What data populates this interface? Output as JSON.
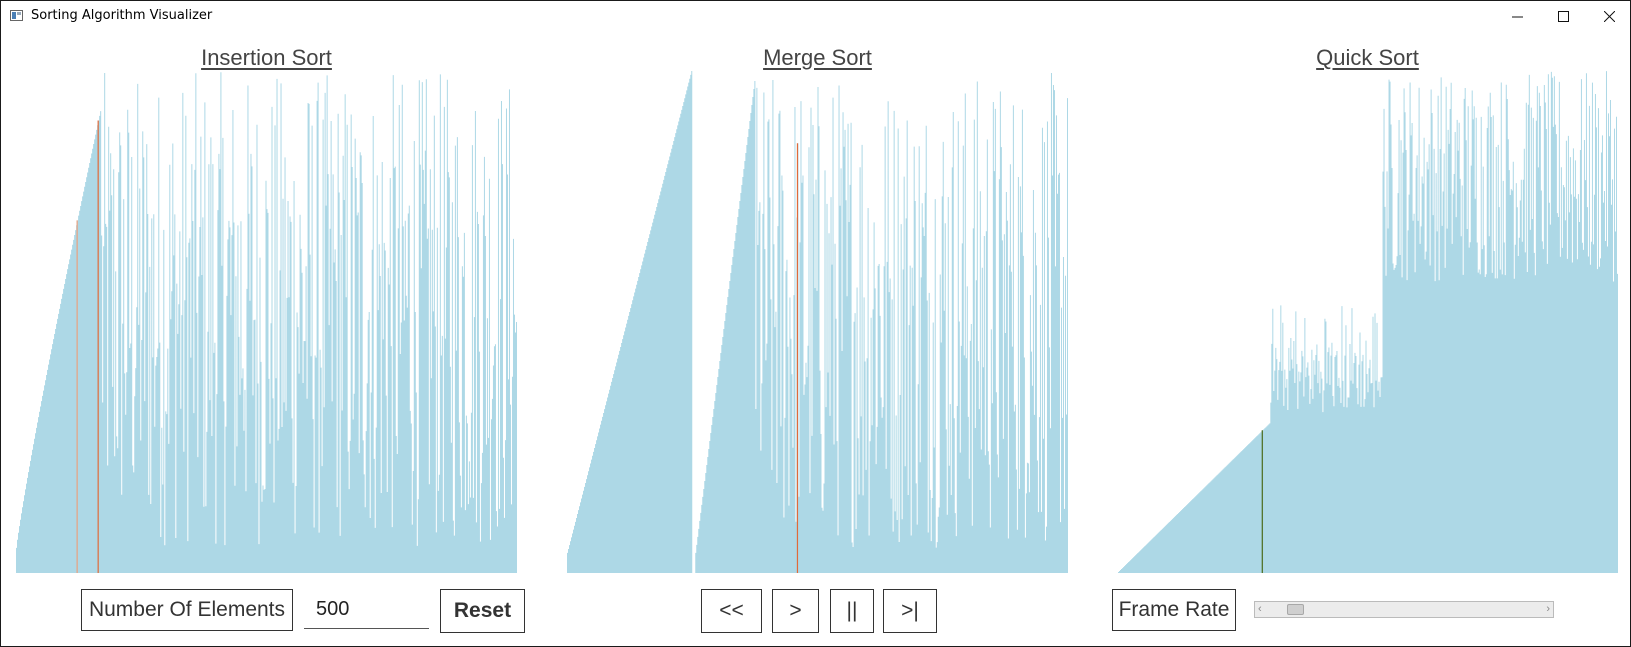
{
  "window": {
    "title": "Sorting Algorithm Visualizer",
    "minimize_icon": "minimize-icon",
    "maximize_icon": "maximize-icon",
    "close_icon": "close-icon"
  },
  "panels": [
    {
      "title": "Insertion Sort",
      "sorted_fraction": 0.17,
      "sorted_range": [
        0.05,
        0.92
      ],
      "markers": [
        {
          "position": 0.122,
          "color": "#e8a080"
        },
        {
          "position": 0.164,
          "color": "#e06a3a"
        }
      ]
    },
    {
      "title": "Merge Sort",
      "segments": [
        {
          "from": 0.0,
          "to": 0.25,
          "range": [
            0.04,
            1.0
          ]
        },
        {
          "from": 0.255,
          "to": 0.375,
          "range": [
            0.04,
            0.98
          ]
        }
      ],
      "markers": [
        {
          "position": 0.46,
          "color": "#e06a3a"
        }
      ]
    },
    {
      "title": "Quick Sort",
      "diagonal_to": 0.305,
      "diagonal_top": 0.3,
      "mid_block": [
        0.305,
        0.53
      ],
      "mid_base": 0.32,
      "mid_peak": 0.54,
      "high_base": 0.56,
      "markers": [
        {
          "position": 0.29,
          "color": "#4a6a1a"
        }
      ]
    }
  ],
  "bar_color": "#add8e6",
  "controls": {
    "num_elements_label": "Number Of Elements",
    "num_elements_value": "500",
    "reset_label": "Reset",
    "rewind_label": "<<",
    "play_label": ">",
    "pause_label": "||",
    "step_label": ">|",
    "frame_rate_label": "Frame Rate",
    "slider_left": "‹",
    "slider_right": "›",
    "frame_rate_value": 0.07
  }
}
